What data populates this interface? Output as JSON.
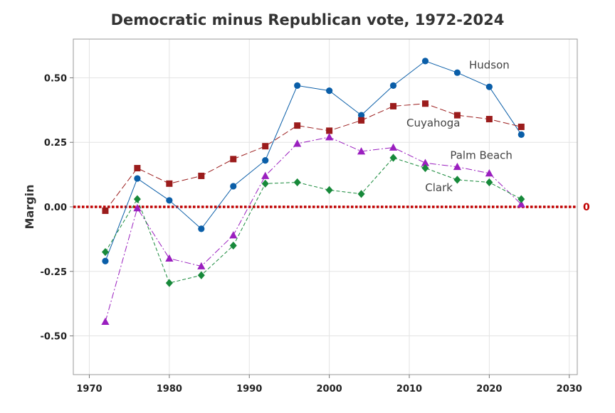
{
  "chart_data": {
    "type": "line",
    "title": "Democratic minus Republican vote, 1972-2024",
    "xlabel": "",
    "ylabel": "Margin",
    "xlim": [
      1968,
      2031
    ],
    "ylim": [
      -0.65,
      0.65
    ],
    "xticks": [
      1970,
      1980,
      1990,
      2000,
      2010,
      2020,
      2030
    ],
    "yticks": [
      0.5,
      0.25,
      0.0,
      -0.25,
      -0.5
    ],
    "ytick_labels": [
      "0.50",
      "0.25",
      "0.00",
      "-0.25",
      "-0.50"
    ],
    "grid": true,
    "reference_line": {
      "y": 0,
      "label": "0",
      "color": "#c00000",
      "style": "dotted"
    },
    "x": [
      1972,
      1976,
      1980,
      1984,
      1988,
      1992,
      1996,
      2000,
      2004,
      2008,
      2012,
      2016,
      2020,
      2024
    ],
    "series": [
      {
        "name": "Hudson",
        "color": "#0a5ea8",
        "marker": "circle",
        "dash": "solid",
        "label_at": [
          2020,
          0.55
        ],
        "values": [
          -0.21,
          0.11,
          0.025,
          -0.085,
          0.08,
          0.18,
          0.47,
          0.45,
          0.355,
          0.47,
          0.565,
          0.52,
          0.465,
          0.28
        ]
      },
      {
        "name": "Cuyahoga",
        "color": "#9b1c1c",
        "marker": "square",
        "dash": "longdash",
        "label_at": [
          2013,
          0.325
        ],
        "values": [
          -0.015,
          0.15,
          0.09,
          0.12,
          0.185,
          0.235,
          0.315,
          0.295,
          0.335,
          0.39,
          0.4,
          0.355,
          0.34,
          0.31
        ]
      },
      {
        "name": "Palm Beach",
        "color": "#9a1fbf",
        "marker": "triangle",
        "dash": "dashdot",
        "label_at": [
          2019,
          0.2
        ],
        "values": [
          -0.445,
          -0.005,
          -0.2,
          -0.23,
          -0.11,
          0.12,
          0.245,
          0.27,
          0.215,
          0.23,
          0.17,
          0.155,
          0.13,
          0.01
        ]
      },
      {
        "name": "Clark",
        "color": "#17893a",
        "marker": "diamond",
        "dash": "dash",
        "label_at": [
          2013.7,
          0.075
        ],
        "values": [
          -0.175,
          0.03,
          -0.295,
          -0.265,
          -0.15,
          0.09,
          0.095,
          0.065,
          0.05,
          0.19,
          0.15,
          0.105,
          0.095,
          0.03
        ]
      }
    ]
  }
}
